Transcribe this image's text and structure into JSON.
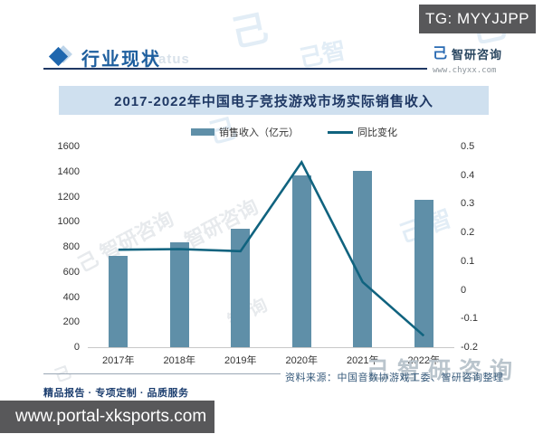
{
  "top": {
    "tg_label": "TG: MYYJJPP"
  },
  "header": {
    "title": "行业现状",
    "watermark": "Status",
    "logo_text": "智研咨询",
    "logo_icon_glyph": "己",
    "logo_url": "www.chyxx.com"
  },
  "chart_data": {
    "type": "bar+line",
    "title": "2017-2022年中国电子竞技游戏市场实际销售收入",
    "categories": [
      "2017年",
      "2018年",
      "2019年",
      "2020年",
      "2021年",
      "2022年"
    ],
    "series": [
      {
        "name": "销售收入（亿元）",
        "type": "bar",
        "axis": "left",
        "values": [
          730,
          835,
          945,
          1368,
          1405,
          1178
        ]
      },
      {
        "name": "同比变化",
        "type": "line",
        "axis": "right",
        "values": [
          0.14,
          0.142,
          0.135,
          0.445,
          0.027,
          -0.16
        ]
      }
    ],
    "y_left": {
      "min": 0,
      "max": 1600,
      "ticks": [
        0,
        200,
        400,
        600,
        800,
        1000,
        1200,
        1400,
        1600
      ]
    },
    "y_right": {
      "min": -0.2,
      "max": 0.5,
      "ticks": [
        -0.2,
        -0.1,
        0,
        0.1,
        0.2,
        0.3,
        0.4,
        0.5
      ]
    },
    "colors": {
      "bar": "#5f8fa8",
      "line": "#10637f"
    },
    "legend_position": "top",
    "grid": false
  },
  "footer": {
    "source": "资料来源：中国音数协游戏工委、智研咨询整理",
    "slogan": "精品报告 · 专项定制 · 品质服务",
    "site": "www.portal-xksports.com"
  },
  "watermark_text": "智研咨询"
}
